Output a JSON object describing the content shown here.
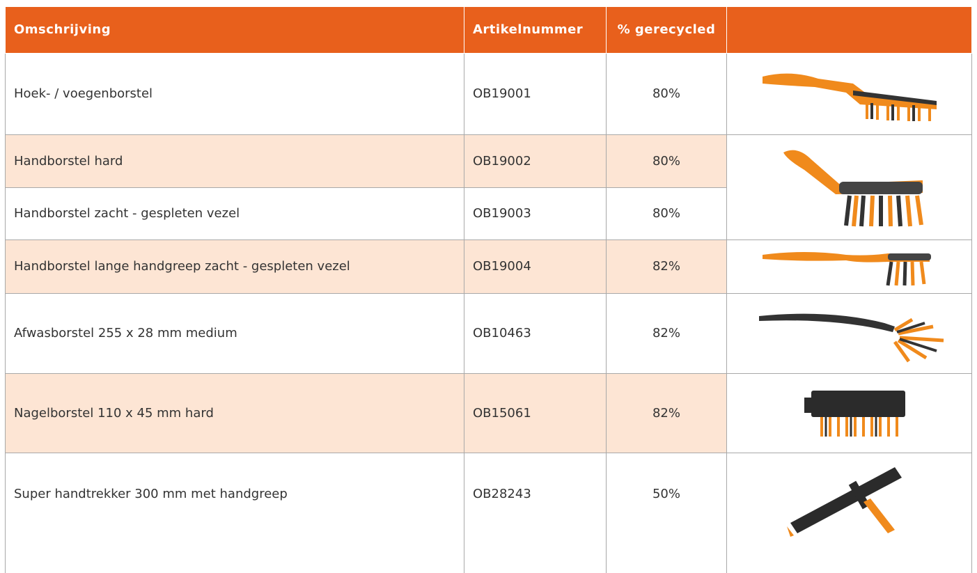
{
  "table": {
    "header": [
      "Omschrijving",
      "Artikelnummer",
      "% gerecycled"
    ],
    "rows": [
      [
        "Hoek- / voegenborstel",
        "OB19001",
        "80%"
      ],
      [
        "Handborstel hard",
        "OB19002",
        "80%"
      ],
      [
        "Handborstel zacht - gespleten vezel",
        "OB19003",
        "80%"
      ],
      [
        "Handborstel lange handgreep zacht - gespleten vezel",
        "OB19004",
        "82%"
      ],
      [
        "Afwasborstel 255 x 28 mm medium",
        "OB10463",
        "82%"
      ],
      [
        "Nagelborstel 110 x 45 mm hard",
        "OB15061",
        "82%"
      ],
      [
        "Super handtrekker 300 mm met handgreep",
        "OB28243",
        "50%"
      ]
    ]
  }
}
